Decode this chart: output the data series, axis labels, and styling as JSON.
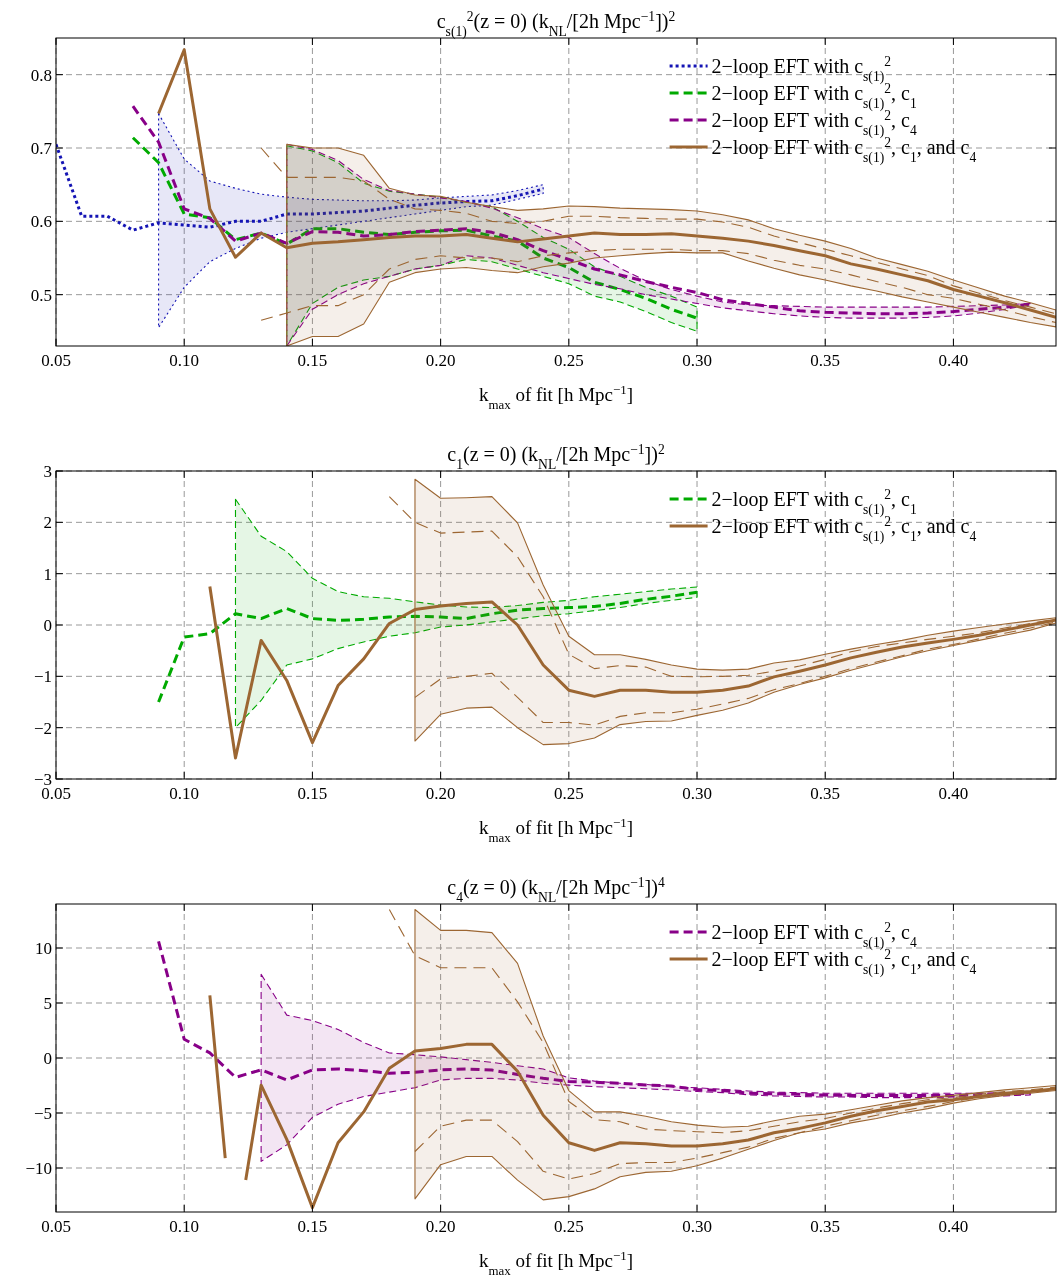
{
  "chart_data": [
    {
      "type": "line",
      "title": "c$_{s(1)}$$^{2}$(z = 0)  (k$_{NL}$/[2h Mpc$^{−1}$])$^{2}$",
      "xlabel": "k$_{max}$ of fit [h Mpc$^{−1}$]",
      "xlim": [
        0.05,
        0.44
      ],
      "ylim": [
        0.43,
        0.85
      ],
      "xticks": [
        0.05,
        {
          "value": 0.1,
          "label": "0.10"
        },
        0.15,
        {
          "value": 0.2,
          "label": "0.20"
        },
        0.25,
        {
          "value": 0.3,
          "label": "0.30"
        },
        0.35,
        {
          "value": 0.4,
          "label": "0.40"
        }
      ],
      "yticks": [
        0.5,
        0.6,
        0.7,
        0.8
      ],
      "grid": true,
      "legend": "top right",
      "series": [
        {
          "name": "2−loop EFT with c$_{s(1)}$$^{2}$",
          "color": "#1414b4",
          "line_style": "dotted",
          "x": [
            0.05,
            0.06,
            0.07,
            0.08,
            0.09,
            0.1,
            0.11,
            0.12,
            0.13,
            0.14,
            0.15,
            0.16,
            0.17,
            0.18,
            0.19,
            0.2,
            0.21,
            0.22,
            0.23,
            0.24
          ],
          "values": [
            0.705,
            0.607,
            0.607,
            0.588,
            0.598,
            0.595,
            0.592,
            0.6,
            0.6,
            0.61,
            0.61,
            0.612,
            0.614,
            0.618,
            0.622,
            0.625,
            0.627,
            0.628,
            0.635,
            0.644
          ],
          "upper": [
            null,
            null,
            null,
            null,
            0.747,
            0.685,
            0.655,
            0.645,
            0.637,
            0.633,
            0.63,
            0.629,
            0.628,
            0.628,
            0.629,
            0.632,
            0.634,
            0.636,
            0.642,
            0.65
          ],
          "lower": [
            null,
            null,
            null,
            null,
            0.455,
            0.51,
            0.545,
            0.563,
            0.577,
            0.585,
            0.59,
            0.595,
            0.6,
            0.605,
            0.61,
            0.615,
            0.62,
            0.622,
            0.63,
            0.638
          ]
        },
        {
          "name": "2−loop EFT with c$_{s(1)}$$^{2}$, c$_{1}$",
          "color": "#00aa00",
          "line_style": "dashed",
          "x": [
            0.08,
            0.09,
            0.1,
            0.11,
            0.12,
            0.13,
            0.14,
            0.15,
            0.16,
            0.17,
            0.18,
            0.19,
            0.2,
            0.21,
            0.22,
            0.23,
            0.24,
            0.25,
            0.26,
            0.27,
            0.28,
            0.29,
            0.3
          ],
          "values": [
            0.714,
            0.68,
            0.61,
            0.605,
            0.575,
            0.584,
            0.569,
            0.59,
            0.59,
            0.585,
            0.582,
            0.585,
            0.587,
            0.588,
            0.58,
            0.573,
            0.55,
            0.537,
            0.517,
            0.507,
            0.495,
            0.48,
            0.468
          ],
          "upper": [
            null,
            null,
            null,
            null,
            null,
            null,
            0.703,
            0.696,
            0.68,
            0.652,
            0.641,
            0.637,
            0.633,
            0.626,
            0.62,
            0.6,
            0.578,
            0.562,
            0.538,
            0.525,
            0.51,
            0.498,
            0.483
          ],
          "lower": [
            null,
            null,
            null,
            null,
            null,
            null,
            0.43,
            0.488,
            0.51,
            0.52,
            0.525,
            0.535,
            0.54,
            0.548,
            0.545,
            0.535,
            0.525,
            0.515,
            0.498,
            0.49,
            0.477,
            0.462,
            0.45
          ]
        },
        {
          "name": "2−loop EFT with c$_{s(1)}$$^{2}$, c$_{4}$",
          "color": "#880088",
          "line_style": "dashed",
          "x": [
            0.08,
            0.09,
            0.1,
            0.11,
            0.12,
            0.13,
            0.14,
            0.15,
            0.16,
            0.17,
            0.18,
            0.19,
            0.2,
            0.21,
            0.22,
            0.23,
            0.24,
            0.25,
            0.26,
            0.27,
            0.28,
            0.29,
            0.3,
            0.31,
            0.32,
            0.33,
            0.34,
            0.35,
            0.36,
            0.37,
            0.38,
            0.39,
            0.4,
            0.41,
            0.42,
            0.43
          ],
          "values": [
            0.757,
            0.708,
            0.617,
            0.604,
            0.573,
            0.584,
            0.57,
            0.586,
            0.585,
            0.58,
            0.582,
            0.586,
            0.588,
            0.59,
            0.585,
            0.575,
            0.56,
            0.548,
            0.535,
            0.527,
            0.518,
            0.51,
            0.503,
            0.493,
            0.488,
            0.483,
            0.478,
            0.476,
            0.475,
            0.474,
            0.474,
            0.475,
            0.477,
            0.48,
            0.483,
            0.487
          ],
          "upper": [
            null,
            null,
            null,
            null,
            null,
            null,
            0.705,
            0.698,
            0.683,
            0.657,
            0.642,
            0.637,
            0.632,
            0.627,
            0.618,
            0.605,
            0.59,
            0.578,
            0.556,
            0.536,
            0.519,
            0.507,
            0.498,
            0.49,
            0.486,
            0.485,
            0.484,
            0.483,
            0.483,
            0.483,
            0.483,
            0.483,
            0.484,
            0.485,
            0.486,
            0.488
          ],
          "lower": [
            null,
            null,
            null,
            null,
            null,
            null,
            0.43,
            0.48,
            0.5,
            0.515,
            0.525,
            0.535,
            0.54,
            0.553,
            0.55,
            0.54,
            0.53,
            0.522,
            0.514,
            0.508,
            0.5,
            0.494,
            0.488,
            0.482,
            0.478,
            0.474,
            0.471,
            0.469,
            0.468,
            0.468,
            0.468,
            0.469,
            0.471,
            0.475,
            0.48,
            0.486
          ]
        },
        {
          "name": "2−loop EFT with c$_{s(1)}$$^{2}$, c$_{1}$, and c$_{4}$",
          "color": "#9c6632",
          "line_style": "solid",
          "x": [
            0.09,
            0.1,
            0.11,
            0.12,
            0.13,
            0.14,
            0.15,
            0.16,
            0.17,
            0.18,
            0.19,
            0.2,
            0.21,
            0.22,
            0.23,
            0.24,
            0.25,
            0.26,
            0.27,
            0.28,
            0.29,
            0.3,
            0.31,
            0.32,
            0.33,
            0.34,
            0.35,
            0.36,
            0.37,
            0.38,
            0.39,
            0.4,
            0.41,
            0.42,
            0.43,
            0.44
          ],
          "values": [
            0.747,
            0.834,
            0.617,
            0.551,
            0.584,
            0.564,
            0.57,
            0.572,
            0.575,
            0.578,
            0.58,
            0.58,
            0.582,
            0.577,
            0.572,
            0.576,
            0.58,
            0.584,
            0.582,
            0.582,
            0.583,
            0.58,
            0.577,
            0.573,
            0.567,
            0.56,
            0.553,
            0.542,
            0.535,
            0.527,
            0.519,
            0.507,
            0.498,
            0.489,
            0.479,
            0.469
          ],
          "upper": [
            null,
            null,
            null,
            null,
            null,
            0.705,
            0.7,
            0.7,
            0.69,
            0.645,
            0.636,
            0.634,
            0.626,
            0.62,
            0.615,
            0.617,
            0.621,
            0.62,
            0.618,
            0.617,
            0.616,
            0.614,
            0.609,
            0.602,
            0.59,
            0.581,
            0.573,
            0.563,
            0.55,
            0.541,
            0.532,
            0.52,
            0.509,
            0.498,
            0.489,
            0.479
          ],
          "lower": [
            null,
            null,
            null,
            null,
            null,
            0.43,
            0.443,
            0.443,
            0.46,
            0.517,
            0.53,
            0.535,
            0.537,
            0.533,
            0.53,
            0.538,
            0.543,
            0.55,
            0.553,
            0.556,
            0.558,
            0.557,
            0.557,
            0.546,
            0.536,
            0.527,
            0.52,
            0.512,
            0.505,
            0.497,
            0.49,
            0.483,
            0.476,
            0.469,
            0.462,
            0.456
          ]
        },
        {
          "color": "#9c6632",
          "line_style": "dashed",
          "x": [
            0.13,
            0.14,
            0.15,
            0.16,
            0.17,
            0.18,
            0.19,
            0.2,
            0.21,
            0.22,
            0.23,
            0.24,
            0.25,
            0.26,
            0.27,
            0.28,
            0.29,
            0.3,
            0.31,
            0.32,
            0.33,
            0.34,
            0.35,
            0.36,
            0.37,
            0.38,
            0.39,
            0.4,
            0.41,
            0.42,
            0.43,
            0.44
          ],
          "values": [
            0.7,
            0.66,
            0.66,
            0.66,
            0.655,
            0.63,
            0.617,
            0.615,
            0.611,
            0.6,
            0.597,
            0.6,
            0.607,
            0.607,
            0.605,
            0.604,
            0.603,
            0.603,
            0.599,
            0.592,
            0.58,
            0.571,
            0.562,
            0.553,
            0.544,
            0.535,
            0.526,
            0.512,
            0.502,
            0.492,
            0.483,
            0.474
          ]
        },
        {
          "color": "#9c6632",
          "line_style": "dashed",
          "x": [
            0.13,
            0.14,
            0.15,
            0.16,
            0.17,
            0.18,
            0.19,
            0.2,
            0.21,
            0.22,
            0.23,
            0.24,
            0.25,
            0.26,
            0.27,
            0.28,
            0.29,
            0.3,
            0.31,
            0.32,
            0.33,
            0.34,
            0.35,
            0.36,
            0.37,
            0.38,
            0.39,
            0.4,
            0.41,
            0.42,
            0.43,
            0.44
          ],
          "values": [
            0.465,
            0.475,
            0.485,
            0.485,
            0.5,
            0.535,
            0.548,
            0.553,
            0.55,
            0.55,
            0.545,
            0.553,
            0.557,
            0.56,
            0.562,
            0.562,
            0.562,
            0.56,
            0.56,
            0.556,
            0.547,
            0.54,
            0.535,
            0.527,
            0.518,
            0.51,
            0.5,
            0.495,
            0.487,
            0.479,
            0.47,
            0.462
          ]
        }
      ]
    },
    {
      "type": "line",
      "title": "c$_{1}$(z = 0)  (k$_{NL}$/[2h Mpc$^{−1}$])$^{2}$",
      "xlabel": "k$_{max}$ of fit [h Mpc$^{−1}$]",
      "xlim": [
        0.05,
        0.44
      ],
      "ylim": [
        -3,
        3
      ],
      "xticks": [
        0.05,
        {
          "value": 0.1,
          "label": "0.10"
        },
        0.15,
        {
          "value": 0.2,
          "label": "0.20"
        },
        0.25,
        {
          "value": 0.3,
          "label": "0.30"
        },
        0.35,
        {
          "value": 0.4,
          "label": "0.40"
        }
      ],
      "yticks": [
        {
          "value": -3,
          "label": "−3"
        },
        {
          "value": -2,
          "label": "−2"
        },
        {
          "value": -1,
          "label": "−1"
        },
        0,
        1,
        2,
        3
      ],
      "grid": true,
      "legend": "top right",
      "series": [
        {
          "name": "2−loop EFT with c$_{s(1)}$$^{2}$, c$_{1}$",
          "color": "#00aa00",
          "line_style": "dashed",
          "x": [
            0.09,
            0.1,
            0.11,
            0.12,
            0.13,
            0.14,
            0.15,
            0.16,
            0.17,
            0.18,
            0.19,
            0.2,
            0.21,
            0.22,
            0.23,
            0.24,
            0.25,
            0.26,
            0.27,
            0.28,
            0.29,
            0.3
          ],
          "values": [
            -1.5,
            -0.235,
            -0.17,
            0.22,
            0.125,
            0.32,
            0.125,
            0.09,
            0.11,
            0.157,
            0.17,
            0.157,
            0.125,
            0.22,
            0.29,
            0.32,
            0.34,
            0.36,
            0.42,
            0.5,
            0.56,
            0.64
          ],
          "upper": [
            null,
            null,
            null,
            2.45,
            1.73,
            1.43,
            0.91,
            0.65,
            0.55,
            0.52,
            0.45,
            0.39,
            0.35,
            0.34,
            0.38,
            0.44,
            0.48,
            0.55,
            0.6,
            0.65,
            0.7,
            0.74
          ],
          "lower": [
            null,
            null,
            null,
            -2.0,
            -1.47,
            -0.78,
            -0.66,
            -0.46,
            -0.33,
            -0.22,
            -0.15,
            -0.04,
            0.0,
            0.06,
            0.12,
            0.18,
            0.22,
            0.28,
            0.34,
            0.42,
            0.48,
            0.54
          ]
        },
        {
          "name": "2−loop EFT with c$_{s(1)}$$^{2}$, c$_{1}$, and c$_{4}$",
          "color": "#9c6632",
          "line_style": "solid",
          "x": [
            0.11,
            0.12,
            0.13,
            0.14,
            0.15,
            0.16,
            0.17,
            0.18,
            0.19,
            0.2,
            0.21,
            0.22,
            0.23,
            0.24,
            0.25,
            0.26,
            0.27,
            0.28,
            0.29,
            0.3,
            0.31,
            0.32,
            0.33,
            0.34,
            0.35,
            0.36,
            0.37,
            0.38,
            0.39,
            0.4,
            0.41,
            0.42,
            0.43,
            0.44
          ],
          "values": [
            0.75,
            -2.59,
            -0.3,
            -1.08,
            -2.29,
            -1.18,
            -0.66,
            0.03,
            0.3,
            0.37,
            0.42,
            0.45,
            0.0,
            -0.78,
            -1.27,
            -1.39,
            -1.27,
            -1.27,
            -1.31,
            -1.31,
            -1.27,
            -1.19,
            -1.01,
            -0.9,
            -0.78,
            -0.64,
            -0.53,
            -0.43,
            -0.35,
            -0.28,
            -0.2,
            -0.1,
            0.0,
            0.1
          ],
          "upper": [
            null,
            null,
            null,
            null,
            null,
            null,
            null,
            null,
            2.84,
            2.47,
            2.48,
            2.5,
            1.99,
            0.78,
            -0.22,
            -0.58,
            -0.58,
            -0.67,
            -0.78,
            -0.86,
            -0.88,
            -0.86,
            -0.74,
            -0.68,
            -0.57,
            -0.47,
            -0.38,
            -0.3,
            -0.2,
            -0.12,
            -0.05,
            0.02,
            0.08,
            0.14
          ],
          "lower": [
            null,
            null,
            null,
            null,
            null,
            null,
            null,
            null,
            -2.26,
            -1.74,
            -1.62,
            -1.6,
            -2.0,
            -2.33,
            -2.31,
            -2.2,
            -1.94,
            -1.88,
            -1.87,
            -1.76,
            -1.66,
            -1.52,
            -1.31,
            -1.16,
            -1.03,
            -0.88,
            -0.75,
            -0.62,
            -0.5,
            -0.4,
            -0.3,
            -0.2,
            -0.1,
            0.04
          ]
        },
        {
          "color": "#9c6632",
          "line_style": "dashed",
          "x": [
            0.18,
            0.19,
            0.2,
            0.21,
            0.22,
            0.23,
            0.24,
            0.25,
            0.26,
            0.27,
            0.28,
            0.29,
            0.3,
            0.31,
            0.32,
            0.33,
            0.34,
            0.35,
            0.36,
            0.37,
            0.38,
            0.39,
            0.4,
            0.41,
            0.42,
            0.43,
            0.44
          ],
          "values": [
            2.5,
            2.0,
            1.79,
            1.81,
            1.83,
            1.33,
            0.55,
            -0.57,
            -0.85,
            -0.79,
            -0.82,
            -1.0,
            -1.01,
            -1.0,
            -0.98,
            -0.9,
            -0.8,
            -0.67,
            -0.52,
            -0.42,
            -0.35,
            -0.28,
            -0.22,
            -0.15,
            -0.06,
            0.03,
            0.12
          ]
        },
        {
          "color": "#9c6632",
          "line_style": "dashed",
          "x": [
            0.19,
            0.2,
            0.21,
            0.22,
            0.23,
            0.24,
            0.25,
            0.26,
            0.27,
            0.28,
            0.29,
            0.3,
            0.31,
            0.32,
            0.33,
            0.34,
            0.35,
            0.36,
            0.37,
            0.38,
            0.39,
            0.4,
            0.41,
            0.42,
            0.43,
            0.44
          ],
          "values": [
            -1.41,
            -1.05,
            -1.0,
            -0.94,
            -1.41,
            -1.9,
            -1.9,
            -1.95,
            -1.78,
            -1.71,
            -1.71,
            -1.64,
            -1.54,
            -1.43,
            -1.26,
            -1.14,
            -1.0,
            -0.85,
            -0.72,
            -0.6,
            -0.47,
            -0.38,
            -0.27,
            -0.16,
            -0.06,
            0.06
          ]
        }
      ]
    },
    {
      "type": "line",
      "title": "c$_{4}$(z = 0)  (k$_{NL}$/[2h Mpc$^{−1}$])$^{4}$",
      "xlabel": "k$_{max}$ of fit [h Mpc$^{−1}$]",
      "xlim": [
        0.05,
        0.44
      ],
      "ylim": [
        -14,
        14
      ],
      "xticks": [
        0.05,
        {
          "value": 0.1,
          "label": "0.10"
        },
        0.15,
        {
          "value": 0.2,
          "label": "0.20"
        },
        0.25,
        {
          "value": 0.3,
          "label": "0.30"
        },
        0.35,
        {
          "value": 0.4,
          "label": "0.40"
        }
      ],
      "yticks": [
        {
          "value": -10,
          "label": "−10"
        },
        {
          "value": -5,
          "label": "−5"
        },
        0,
        5,
        10
      ],
      "grid": true,
      "legend": "top right",
      "series": [
        {
          "name": "2−loop EFT with c$_{s(1)}$$^{2}$, c$_{4}$",
          "color": "#880088",
          "line_style": "dashed",
          "x": [
            0.09,
            0.1,
            0.11,
            0.12,
            0.13,
            0.14,
            0.15,
            0.16,
            0.17,
            0.18,
            0.19,
            0.2,
            0.21,
            0.22,
            0.23,
            0.24,
            0.25,
            0.26,
            0.27,
            0.28,
            0.29,
            0.3,
            0.31,
            0.32,
            0.33,
            0.34,
            0.35,
            0.36,
            0.37,
            0.38,
            0.39,
            0.4,
            0.41,
            0.42,
            0.43
          ],
          "values": [
            10.6,
            1.7,
            0.46,
            -1.76,
            -1.08,
            -2.0,
            -1.08,
            -1.0,
            -1.15,
            -1.39,
            -1.3,
            -1.08,
            -1.0,
            -1.1,
            -1.5,
            -1.85,
            -2.13,
            -2.2,
            -2.3,
            -2.45,
            -2.55,
            -2.87,
            -2.95,
            -3.2,
            -3.25,
            -3.3,
            -3.37,
            -3.4,
            -3.4,
            -3.4,
            -3.4,
            -3.4,
            -3.35,
            -3.3,
            -3.2
          ],
          "upper": [
            null,
            null,
            null,
            null,
            7.6,
            3.9,
            3.4,
            2.6,
            1.4,
            0.46,
            0.3,
            0.1,
            -0.15,
            -0.4,
            -0.7,
            -1.0,
            -1.8,
            -2.1,
            -2.3,
            -2.4,
            -2.6,
            -2.7,
            -2.85,
            -3.0,
            -3.1,
            -3.15,
            -3.2,
            -3.2,
            -3.2,
            -3.2,
            -3.2,
            -3.2,
            -3.2,
            -3.15,
            -3.1
          ],
          "lower": [
            null,
            null,
            null,
            null,
            -9.4,
            -7.9,
            -5.4,
            -4.2,
            -3.5,
            -3.1,
            -2.7,
            -2.0,
            -1.85,
            -1.85,
            -2.0,
            -2.3,
            -2.47,
            -2.6,
            -2.7,
            -2.8,
            -2.9,
            -3.05,
            -3.15,
            -3.35,
            -3.45,
            -3.5,
            -3.55,
            -3.55,
            -3.6,
            -3.6,
            -3.6,
            -3.55,
            -3.5,
            -3.45,
            -3.35
          ]
        },
        {
          "name": "2−loop EFT with c$_{s(1)}$$^{2}$, c$_{1}$, and c$_{4}$",
          "color": "#9c6632",
          "line_style": "solid",
          "x": [
            0.11,
            0.116,
            0.12,
            0.124,
            0.13,
            0.14,
            0.15,
            0.16,
            0.17,
            0.18,
            0.19,
            0.2,
            0.21,
            0.22,
            0.23,
            0.24,
            0.25,
            0.26,
            0.27,
            0.28,
            0.29,
            0.3,
            0.31,
            0.32,
            0.33,
            0.34,
            0.35,
            0.36,
            0.37,
            0.38,
            0.39,
            0.4,
            0.41,
            0.42,
            0.43,
            0.44
          ],
          "values": [
            5.7,
            -9.1,
            null,
            -11.1,
            -2.47,
            -7.4,
            -13.6,
            -7.7,
            -4.9,
            -0.93,
            0.64,
            0.86,
            1.24,
            1.24,
            -1.2,
            -5.2,
            -7.7,
            -8.4,
            -7.7,
            -7.8,
            -8.0,
            -8.0,
            -7.8,
            -7.45,
            -6.8,
            -6.4,
            -5.9,
            -5.3,
            -4.8,
            -4.4,
            -4.0,
            -3.8,
            -3.5,
            -3.2,
            -3.05,
            -2.8
          ],
          "upper": [
            null,
            null,
            null,
            null,
            null,
            null,
            null,
            null,
            null,
            null,
            13.5,
            11.6,
            11.6,
            11.4,
            8.6,
            2.0,
            -2.96,
            -4.9,
            -4.9,
            -5.3,
            -5.8,
            -6.1,
            -6.3,
            -6.2,
            -5.7,
            -5.3,
            -5.1,
            -4.7,
            -4.3,
            -3.9,
            -3.6,
            -3.4,
            -3.15,
            -2.9,
            -2.7,
            -2.5
          ],
          "lower": [
            null,
            null,
            null,
            null,
            null,
            null,
            null,
            null,
            null,
            null,
            -12.8,
            -9.7,
            -8.95,
            -8.95,
            -11.1,
            -12.9,
            -12.6,
            -11.9,
            -10.8,
            -10.4,
            -10.3,
            -9.8,
            -9.1,
            -8.3,
            -7.5,
            -6.8,
            -6.46,
            -5.9,
            -5.5,
            -5.0,
            -4.6,
            -4.1,
            -3.7,
            -3.4,
            -3.2,
            -2.95
          ]
        },
        {
          "color": "#9c6632",
          "line_style": "dashed",
          "x": [
            0.18,
            0.19,
            0.2,
            0.21,
            0.22,
            0.23,
            0.24,
            0.25,
            0.26,
            0.27,
            0.28,
            0.29,
            0.3,
            0.31,
            0.32,
            0.33,
            0.34,
            0.35,
            0.36,
            0.37,
            0.38,
            0.39,
            0.4,
            0.41,
            0.42,
            0.43,
            0.44
          ],
          "values": [
            13.5,
            9.3,
            8.2,
            8.2,
            8.2,
            5.1,
            1.4,
            -3.96,
            -5.6,
            -5.8,
            -6.46,
            -6.6,
            -6.7,
            -6.8,
            -6.6,
            -6.2,
            -5.8,
            -5.5,
            -5.0,
            -4.55,
            -4.15,
            -3.8,
            -3.6,
            -3.3,
            -3.05,
            -2.9,
            -2.65
          ]
        },
        {
          "color": "#9c6632",
          "line_style": "dashed",
          "x": [
            0.19,
            0.2,
            0.21,
            0.22,
            0.23,
            0.24,
            0.25,
            0.26,
            0.27,
            0.28,
            0.29,
            0.3,
            0.31,
            0.32,
            0.33,
            0.34,
            0.35,
            0.36,
            0.37,
            0.38,
            0.39,
            0.4,
            0.41,
            0.42,
            0.43,
            0.44
          ],
          "values": [
            -8.5,
            -6.2,
            -5.65,
            -5.65,
            -7.6,
            -10.3,
            -11.0,
            -10.5,
            -9.6,
            -9.5,
            -9.5,
            -9.1,
            -8.6,
            -8.1,
            -7.3,
            -6.8,
            -6.2,
            -5.7,
            -5.2,
            -4.8,
            -4.4,
            -3.95,
            -3.6,
            -3.3,
            -3.12,
            -2.88
          ]
        }
      ]
    }
  ]
}
